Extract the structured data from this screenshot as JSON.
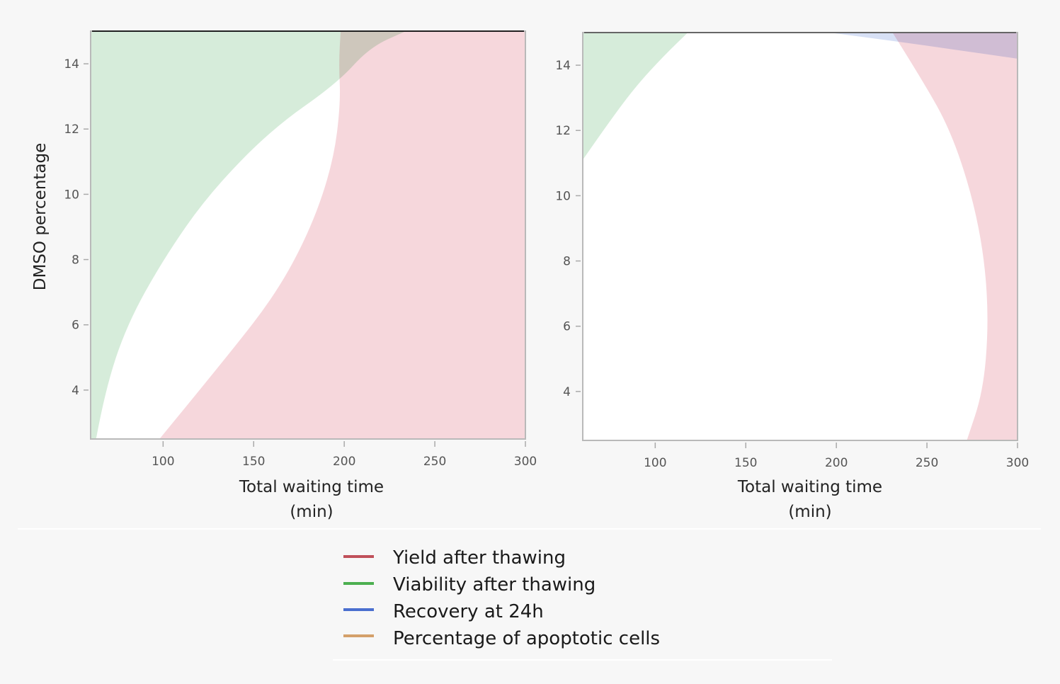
{
  "chart_data": [
    {
      "type": "area",
      "subtype": "contour-overlay",
      "title": "",
      "xlabel": "Total waiting time\n(min)",
      "xlabel_lines": [
        "Total waiting time",
        "(min)"
      ],
      "ylabel": "DMSO percentage",
      "xlim": [
        60,
        300
      ],
      "ylim": [
        2.5,
        15
      ],
      "xticks": [
        100,
        150,
        200,
        250,
        300
      ],
      "xtick_labels": [
        "100",
        "150",
        "200",
        "250",
        "300"
      ],
      "yticks": [
        4,
        6,
        8,
        10,
        12,
        14
      ],
      "ytick_labels": [
        "4",
        "6",
        "8",
        "10",
        "12",
        "14"
      ],
      "grid": false,
      "regions": [
        {
          "series": "Viability after thawing",
          "color": "#cfe9d3",
          "boundary": "upper-left of curve",
          "curve": [
            [
              63,
              2.5
            ],
            [
              68,
              4
            ],
            [
              80,
              6
            ],
            [
              100,
              8
            ],
            [
              125,
              10
            ],
            [
              160,
              12
            ],
            [
              196,
              13.4
            ],
            [
              214,
              14.5
            ],
            [
              234,
              15
            ]
          ]
        },
        {
          "series": "Yield after thawing",
          "color": "#f4d0d6",
          "boundary": "right of curve",
          "curve": [
            [
              98,
              2.5
            ],
            [
              135,
              5
            ],
            [
              163,
              7
            ],
            [
              182,
              9
            ],
            [
              194,
              11
            ],
            [
              198,
              12.8
            ],
            [
              197,
              14
            ],
            [
              198,
              15
            ]
          ]
        }
      ]
    },
    {
      "type": "area",
      "subtype": "contour-overlay",
      "title": "",
      "xlabel": "Total waiting time\n(min)",
      "xlabel_lines": [
        "Total waiting time",
        "(min)"
      ],
      "ylabel": "",
      "xlim": [
        60,
        300
      ],
      "ylim": [
        2.5,
        15
      ],
      "xticks": [
        100,
        150,
        200,
        250,
        300
      ],
      "xtick_labels": [
        "100",
        "150",
        "200",
        "250",
        "300"
      ],
      "yticks": [
        4,
        6,
        8,
        10,
        12,
        14
      ],
      "ytick_labels": [
        "4",
        "6",
        "8",
        "10",
        "12",
        "14"
      ],
      "grid": false,
      "regions": [
        {
          "series": "Viability after thawing",
          "color": "#cfe9d3",
          "boundary": "upper-left of curve",
          "curve": [
            [
              60,
              11.1
            ],
            [
              75,
              12.3
            ],
            [
              90,
              13.4
            ],
            [
              105,
              14.3
            ],
            [
              118,
              15
            ]
          ]
        },
        {
          "series": "Yield after thawing",
          "color": "#f4d0d6",
          "boundary": "right of curve",
          "curve": [
            [
              231,
              15
            ],
            [
              248,
              13.5
            ],
            [
              263,
              12
            ],
            [
              275,
              10
            ],
            [
              282,
              8
            ],
            [
              284,
              6
            ],
            [
              281,
              4
            ],
            [
              272,
              2.5
            ]
          ]
        },
        {
          "series": "Recovery at 24h",
          "color": "#c9d6f2",
          "boundary": "above line",
          "curve": [
            [
              196,
              15
            ],
            [
              231,
              14.75
            ],
            [
              300,
              14.2
            ]
          ]
        }
      ]
    }
  ],
  "legend": {
    "placement": "bottom-center",
    "items": [
      {
        "label": "Yield after thawing",
        "color": "#c0505a"
      },
      {
        "label": "Viability after thawing",
        "color": "#4caf50"
      },
      {
        "label": "Recovery at 24h",
        "color": "#4a6fcf"
      },
      {
        "label": "Percentage of apoptotic cells",
        "color": "#d4a06a"
      }
    ]
  }
}
